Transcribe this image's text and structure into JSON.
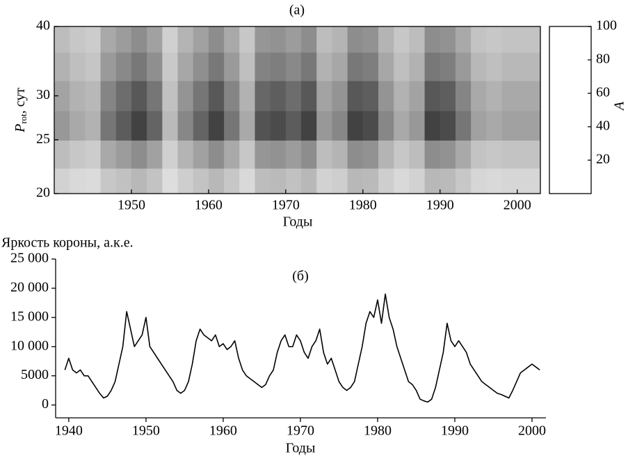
{
  "chart_data": [
    {
      "type": "heatmap",
      "title": "(а)",
      "xlabel": "Годы",
      "ylabel": "P",
      "ylabel_sub": "rot",
      "ylabel_rest": ", сут",
      "xlim": [
        1940,
        2003
      ],
      "xticks": [
        1950,
        1960,
        1970,
        1980,
        1990,
        2000
      ],
      "ylim": [
        20,
        40
      ],
      "yticks": [
        20,
        25,
        30,
        40
      ],
      "logy": true,
      "clim": [
        0,
        100
      ],
      "cticks": [
        20,
        40,
        60,
        80,
        100
      ],
      "clabel": "A",
      "x": [
        1941,
        1943,
        1945,
        1947,
        1949,
        1951,
        1953,
        1955,
        1957,
        1959,
        1961,
        1963,
        1965,
        1967,
        1969,
        1971,
        1973,
        1975,
        1977,
        1979,
        1981,
        1983,
        1985,
        1987,
        1989,
        1991,
        1993,
        1995,
        1997,
        1999,
        2001
      ],
      "y": [
        21,
        23.5,
        26.5,
        30,
        34,
        38
      ],
      "z": [
        [
          13,
          10,
          9,
          18,
          21,
          25,
          20,
          8,
          15,
          20,
          25,
          18,
          10,
          23,
          24,
          21,
          25,
          13,
          15,
          25,
          24,
          15,
          10,
          13,
          25,
          24,
          18,
          11,
          10,
          11,
          11
        ],
        [
          23,
          18,
          16,
          32,
          38,
          45,
          36,
          14,
          27,
          36,
          45,
          32,
          18,
          41,
          43,
          38,
          45,
          23,
          27,
          45,
          43,
          27,
          18,
          23,
          45,
          43,
          32,
          20,
          18,
          20,
          20
        ],
        [
          40,
          32,
          28,
          56,
          68,
          80,
          64,
          24,
          48,
          64,
          80,
          56,
          32,
          72,
          76,
          68,
          80,
          40,
          48,
          80,
          76,
          48,
          32,
          40,
          80,
          76,
          56,
          36,
          32,
          36,
          36
        ],
        [
          35,
          28,
          25,
          49,
          60,
          70,
          56,
          21,
          42,
          56,
          70,
          49,
          28,
          63,
          67,
          60,
          70,
          35,
          42,
          70,
          67,
          42,
          28,
          35,
          70,
          67,
          49,
          32,
          28,
          32,
          32
        ],
        [
          28,
          22,
          19,
          39,
          47,
          55,
          44,
          17,
          33,
          44,
          55,
          39,
          22,
          50,
          52,
          47,
          55,
          28,
          33,
          55,
          52,
          33,
          22,
          28,
          55,
          52,
          39,
          25,
          22,
          25,
          25
        ],
        [
          23,
          18,
          16,
          32,
          38,
          45,
          36,
          14,
          27,
          36,
          45,
          32,
          18,
          41,
          43,
          38,
          45,
          23,
          27,
          45,
          43,
          27,
          18,
          23,
          45,
          43,
          32,
          20,
          18,
          20,
          20
        ]
      ]
    },
    {
      "type": "line",
      "title": "(б)",
      "xlabel": "Годы",
      "ylabel": "Яркость короны, а.к.е.",
      "color": "#000000",
      "xlim": [
        1938.3,
        2001.8
      ],
      "xticks": [
        1940,
        1950,
        1960,
        1970,
        1980,
        1990,
        2000
      ],
      "ylim": [
        -2200,
        25000
      ],
      "yticks": [
        0,
        5000,
        {
          "value": 10000,
          "label": "10 000"
        },
        {
          "value": 15000,
          "label": "15 000"
        },
        {
          "value": 20000,
          "label": "20 000"
        },
        {
          "value": 25000,
          "label": "25 000"
        }
      ],
      "x": [
        1939.5,
        1940,
        1940.5,
        1941,
        1941.5,
        1942,
        1942.5,
        1943,
        1943.5,
        1944,
        1944.5,
        1945,
        1945.5,
        1946,
        1946.5,
        1947,
        1947.5,
        1948,
        1948.5,
        1949,
        1949.5,
        1950,
        1950.5,
        1951,
        1951.5,
        1952,
        1952.5,
        1953,
        1953.5,
        1954,
        1954.5,
        1955,
        1955.5,
        1956,
        1956.5,
        1957,
        1957.5,
        1958,
        1958.5,
        1959,
        1959.5,
        1960,
        1960.5,
        1961,
        1961.5,
        1962,
        1962.5,
        1963,
        1963.5,
        1964,
        1964.5,
        1965,
        1965.5,
        1966,
        1966.5,
        1967,
        1967.5,
        1968,
        1968.5,
        1969,
        1969.5,
        1970,
        1970.5,
        1971,
        1971.5,
        1972,
        1972.5,
        1973,
        1973.5,
        1974,
        1974.5,
        1975,
        1975.5,
        1976,
        1976.5,
        1977,
        1977.5,
        1978,
        1978.5,
        1979,
        1979.5,
        1980,
        1980.5,
        1981,
        1981.5,
        1982,
        1982.5,
        1983,
        1983.5,
        1984,
        1984.5,
        1985,
        1985.5,
        1986,
        1986.5,
        1987,
        1987.5,
        1988,
        1988.5,
        1989,
        1989.5,
        1990,
        1990.5,
        1991,
        1991.5,
        1992,
        1992.5,
        1993,
        1993.5,
        1994,
        1994.5,
        1995,
        1995.5,
        1996,
        1996.5,
        1997,
        1997.5,
        1998,
        1998.5,
        1999,
        1999.5,
        2000,
        2000.5,
        2001
      ],
      "values": [
        6000,
        8000,
        6000,
        5500,
        6000,
        5000,
        5000,
        4000,
        3000,
        2000,
        1200,
        1500,
        2500,
        4000,
        7000,
        10000,
        16000,
        13000,
        10000,
        11000,
        12000,
        15000,
        10000,
        9000,
        8000,
        7000,
        6000,
        5000,
        4000,
        2500,
        2000,
        2500,
        4000,
        7000,
        11000,
        13000,
        12000,
        11500,
        11000,
        12000,
        10000,
        10500,
        9500,
        10000,
        11000,
        8000,
        6000,
        5000,
        4500,
        4000,
        3500,
        3000,
        3500,
        5000,
        6000,
        9000,
        11000,
        12000,
        10000,
        10000,
        12000,
        11000,
        9000,
        8000,
        10000,
        11000,
        13000,
        9000,
        7000,
        8000,
        6000,
        4000,
        3000,
        2500,
        3000,
        4000,
        7000,
        10000,
        14000,
        16000,
        15000,
        18000,
        14000,
        19000,
        15000,
        13000,
        10000,
        8000,
        6000,
        4000,
        3500,
        2500,
        1000,
        700,
        500,
        1000,
        3000,
        6000,
        9000,
        14000,
        11000,
        10000,
        11000,
        10000,
        9000,
        7000,
        6000,
        5000,
        4000,
        3500,
        3000,
        2500,
        2000,
        1800,
        1500,
        1200,
        2500,
        4000,
        5500,
        6000,
        6500,
        7000,
        6500,
        6000
      ]
    }
  ]
}
